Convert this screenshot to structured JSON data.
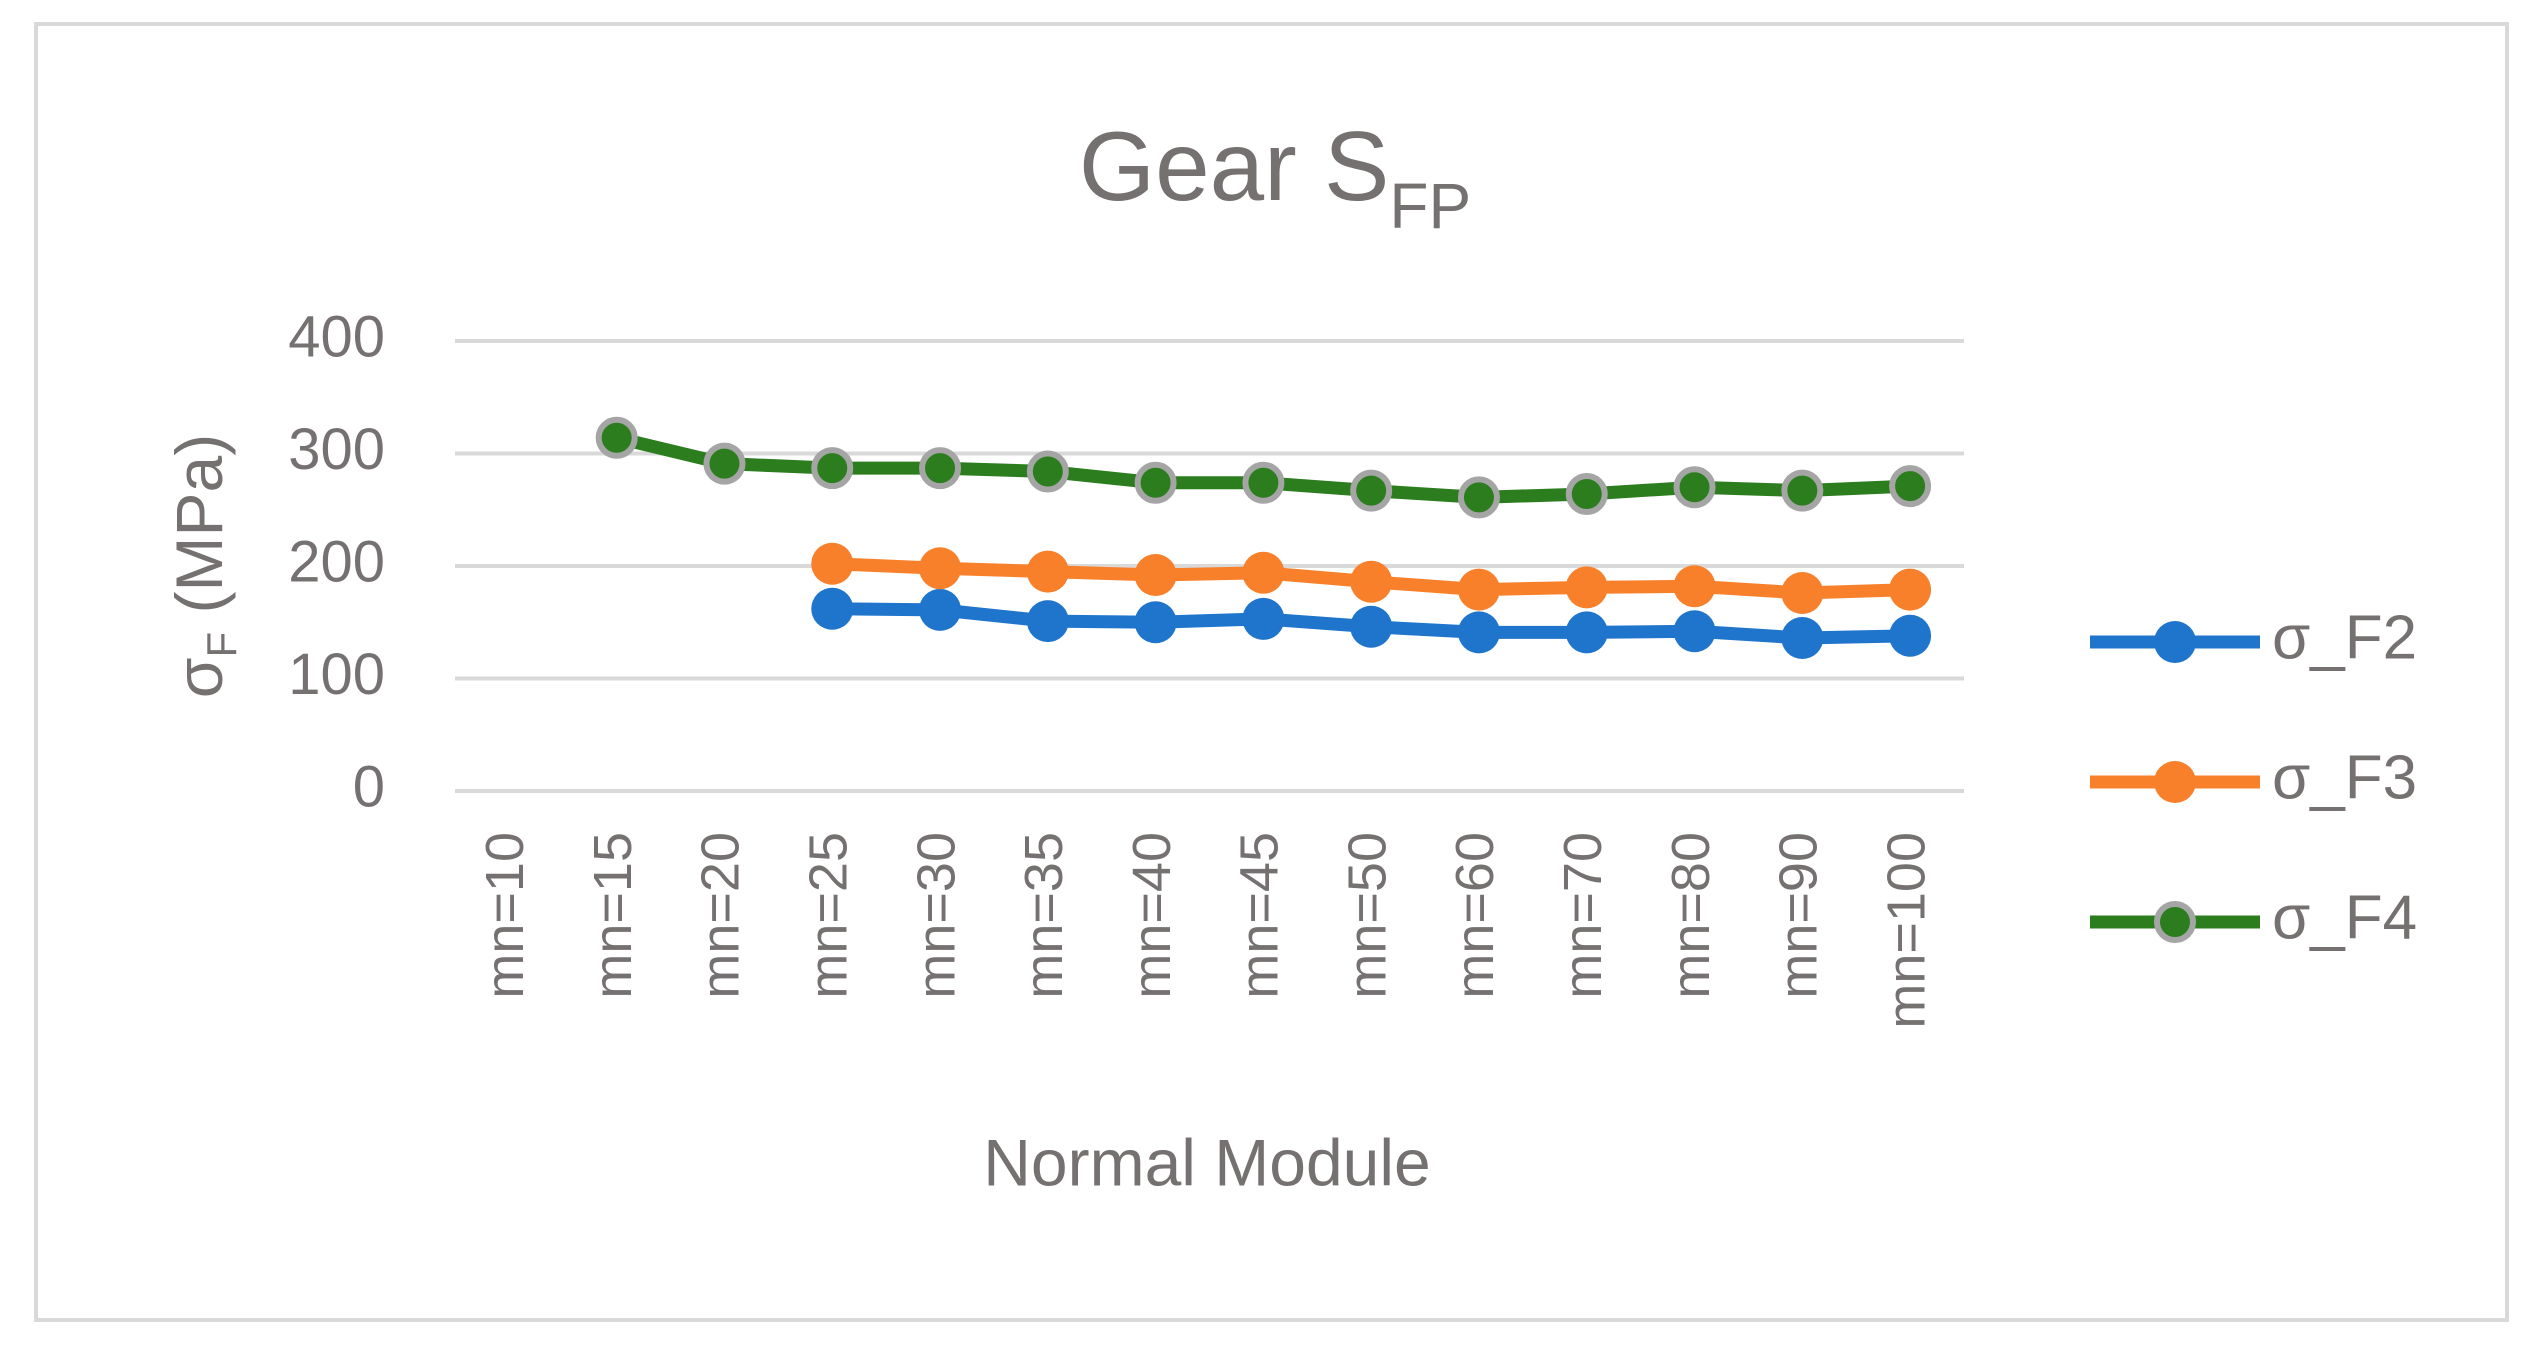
{
  "chart_data": {
    "type": "line",
    "title": "Gear S",
    "title_sub": "FP",
    "x_label": "Normal Module",
    "y_label": "σ",
    "y_label_sub": "F",
    "y_label_rest": " (MPa)",
    "categories": [
      "mn=10",
      "mn=15",
      "mn=20",
      "mn=25",
      "mn=30",
      "mn=35",
      "mn=40",
      "mn=45",
      "mn=50",
      "mn=60",
      "mn=70",
      "mn=80",
      "mn=90",
      "mn=100"
    ],
    "series": [
      {
        "name": "σ_F2",
        "color": "#1f74cc",
        "values": [
          null,
          null,
          null,
          162,
          161,
          151,
          150,
          153,
          146,
          141,
          141,
          142,
          136,
          138
        ]
      },
      {
        "name": "σ_F3",
        "color": "#f8802a",
        "values": [
          null,
          null,
          null,
          202,
          198,
          195,
          192,
          194,
          186,
          179,
          181,
          182,
          176,
          179
        ]
      },
      {
        "name": "σ_F4",
        "color": "#2b7d1e",
        "marker_edge": "#a5a5a5",
        "values": [
          null,
          314,
          291,
          287,
          287,
          284,
          274,
          274,
          267,
          261,
          264,
          270,
          267,
          271
        ]
      }
    ],
    "ylim": [
      0,
      400
    ],
    "yticks": [
      0,
      100,
      200,
      300,
      400
    ],
    "grid": true,
    "legend": "right"
  }
}
